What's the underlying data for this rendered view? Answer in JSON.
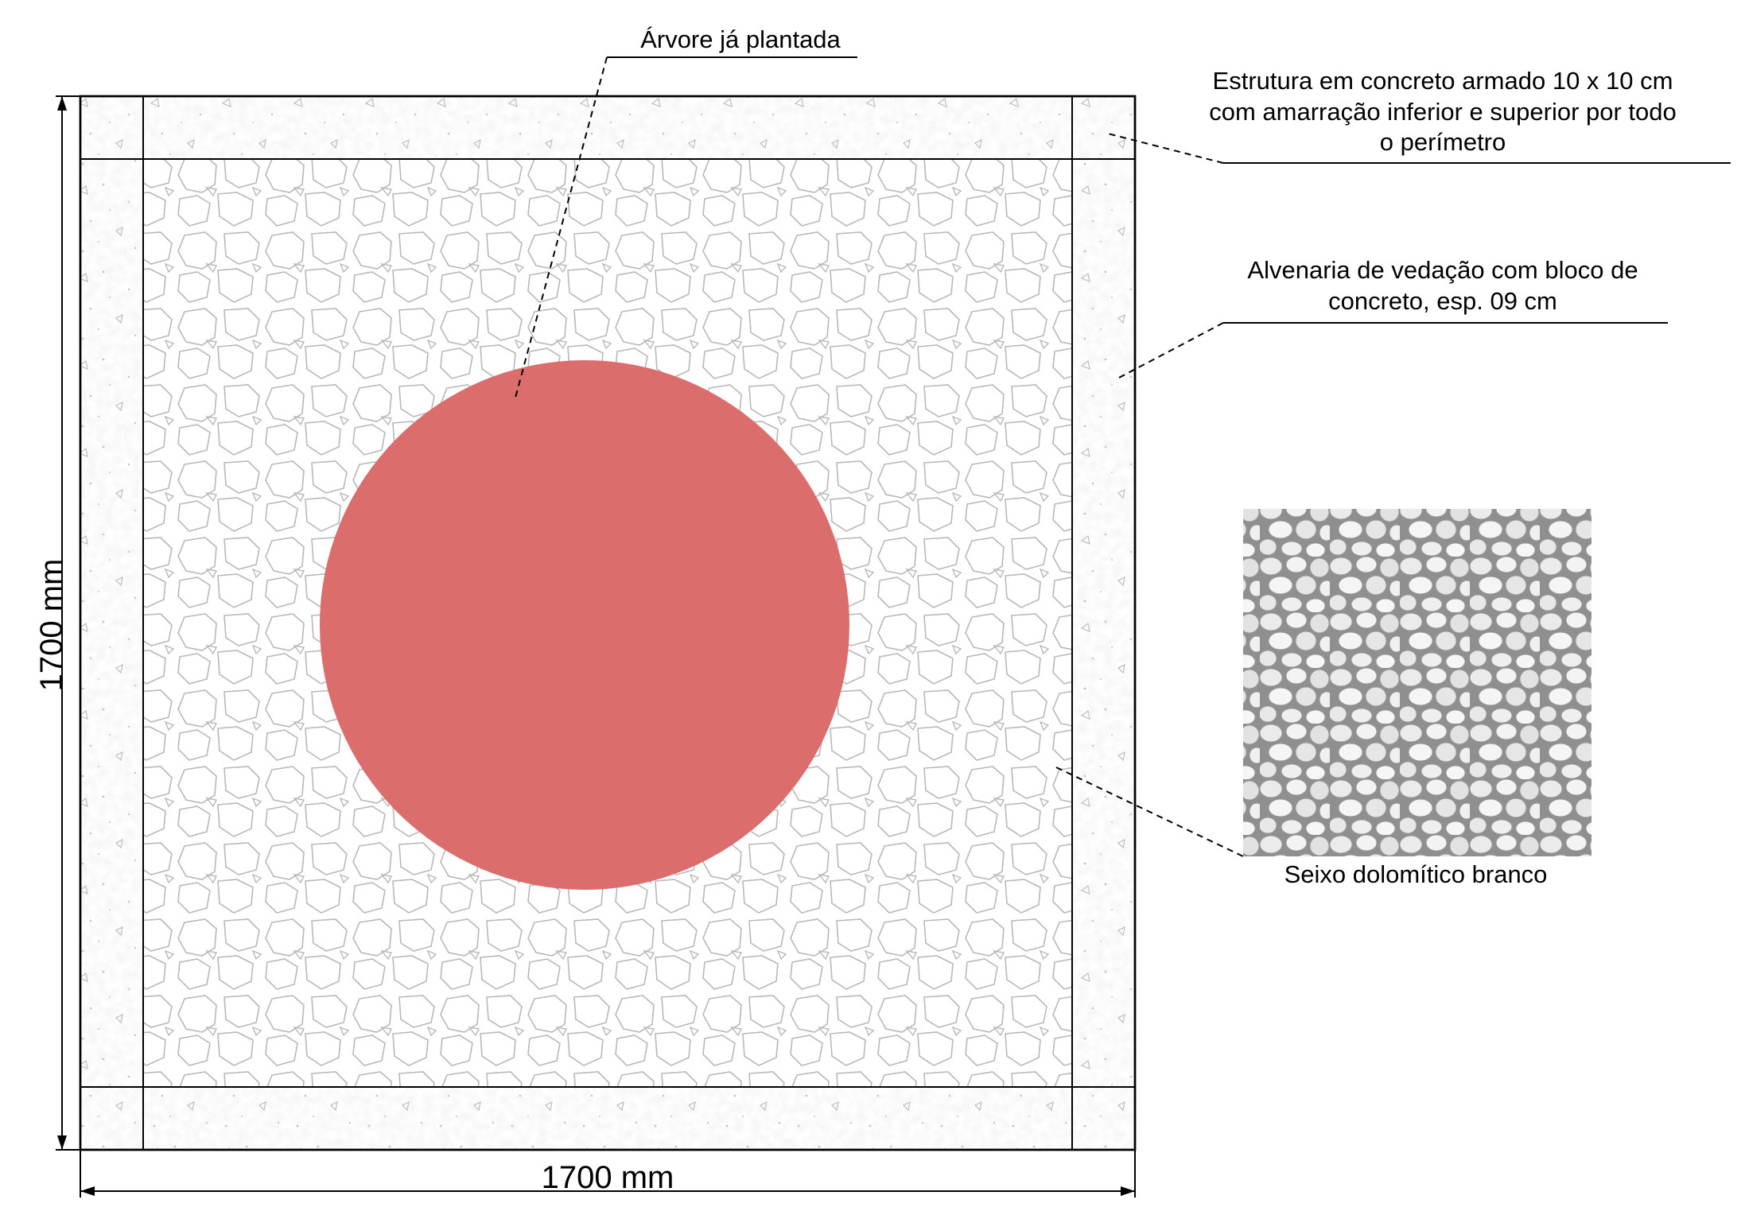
{
  "labels": {
    "tree": "Árvore já plantada",
    "structure": [
      "Estrutura em concreto armado 10 x 10 cm",
      "com amarração inferior e superior por todo",
      "o perímetro"
    ],
    "masonry": [
      "Alvenaria de vedação com bloco de",
      "concreto, esp. 09 cm"
    ],
    "gravel": "Seixo dolomítico branco"
  },
  "dimensions": {
    "width": "1700 mm",
    "height": "1700 mm"
  },
  "colors": {
    "tree_fill": "#dc6d6d",
    "line": "#000000",
    "hatch": "#b8b8b8"
  }
}
